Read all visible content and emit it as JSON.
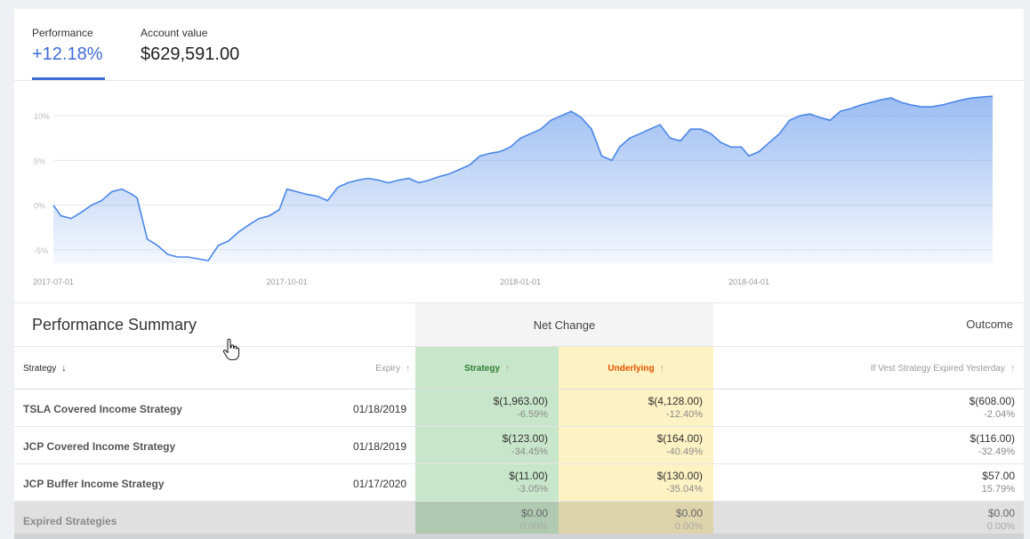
{
  "tabs": {
    "performance": {
      "label": "Performance",
      "value": "+12.18%"
    },
    "account": {
      "label": "Account value",
      "value": "$629,591.00"
    }
  },
  "chart_data": {
    "type": "area",
    "title": "",
    "xlabel": "",
    "ylabel": "",
    "x_ticks": [
      "2017-07-01",
      "2017-10-01",
      "2018-01-01",
      "2018-04-01"
    ],
    "y_ticks": [
      "10%",
      "5%",
      "0%",
      "-5%"
    ],
    "ylim": [
      -6.5,
      13
    ],
    "grid": true,
    "color": "#4a86e8",
    "series": [
      {
        "x": [
          "2017-07-01",
          "2017-07-04",
          "2017-07-08",
          "2017-07-12",
          "2017-07-16",
          "2017-07-20",
          "2017-07-24",
          "2017-07-28",
          "2017-08-01",
          "2017-08-03",
          "2017-08-07",
          "2017-08-11",
          "2017-08-15",
          "2017-08-19",
          "2017-08-23",
          "2017-08-27",
          "2017-08-31",
          "2017-09-04",
          "2017-09-08",
          "2017-09-12",
          "2017-09-16",
          "2017-09-20",
          "2017-09-24",
          "2017-09-28",
          "2017-10-01",
          "2017-10-05",
          "2017-10-09",
          "2017-10-13",
          "2017-10-17",
          "2017-10-21",
          "2017-10-25",
          "2017-10-29",
          "2017-11-02",
          "2017-11-06",
          "2017-11-10",
          "2017-11-14",
          "2017-11-18",
          "2017-11-22",
          "2017-11-26",
          "2017-11-30",
          "2017-12-04",
          "2017-12-08",
          "2017-12-12",
          "2017-12-16",
          "2017-12-20",
          "2017-12-24",
          "2017-12-28",
          "2018-01-01",
          "2018-01-05",
          "2018-01-09",
          "2018-01-13",
          "2018-01-17",
          "2018-01-21",
          "2018-01-25",
          "2018-01-29",
          "2018-02-02",
          "2018-02-06",
          "2018-02-09",
          "2018-02-13",
          "2018-02-17",
          "2018-02-21",
          "2018-02-25",
          "2018-03-01",
          "2018-03-05",
          "2018-03-09",
          "2018-03-13",
          "2018-03-17",
          "2018-03-21",
          "2018-03-25",
          "2018-03-29",
          "2018-04-01",
          "2018-04-05",
          "2018-04-09",
          "2018-04-13",
          "2018-04-17",
          "2018-04-21",
          "2018-04-25",
          "2018-04-29",
          "2018-05-03",
          "2018-05-07",
          "2018-05-11",
          "2018-05-15",
          "2018-05-19",
          "2018-05-23",
          "2018-05-27",
          "2018-05-31",
          "2018-06-04",
          "2018-06-08",
          "2018-06-12",
          "2018-06-16",
          "2018-06-20",
          "2018-06-24",
          "2018-06-28",
          "2018-07-02",
          "2018-07-06"
        ],
        "values": [
          0.0,
          -1.2,
          -1.5,
          -0.8,
          0.0,
          0.5,
          1.5,
          1.8,
          1.2,
          0.8,
          -3.8,
          -4.5,
          -5.5,
          -5.8,
          -5.8,
          -6.0,
          -6.2,
          -4.5,
          -4.0,
          -3.0,
          -2.2,
          -1.5,
          -1.2,
          -0.5,
          1.8,
          1.5,
          1.2,
          1.0,
          0.5,
          2.0,
          2.5,
          2.8,
          3.0,
          2.8,
          2.5,
          2.8,
          3.0,
          2.5,
          2.8,
          3.2,
          3.5,
          4.0,
          4.5,
          5.5,
          5.8,
          6.0,
          6.5,
          7.5,
          8.0,
          8.5,
          9.5,
          10.0,
          10.5,
          9.8,
          8.5,
          5.5,
          5.0,
          6.5,
          7.5,
          8.0,
          8.5,
          9.0,
          7.5,
          7.2,
          8.5,
          8.5,
          8.0,
          7.0,
          6.5,
          6.5,
          5.5,
          6.0,
          7.0,
          8.0,
          9.5,
          10.0,
          10.2,
          9.8,
          9.5,
          10.5,
          10.8,
          11.2,
          11.5,
          11.8,
          12.0,
          11.5,
          11.2,
          11.0,
          11.0,
          11.2,
          11.5,
          11.8,
          12.0,
          12.1,
          12.18
        ]
      }
    ]
  },
  "summary": {
    "title": "Performance Summary",
    "net_change": "Net Change",
    "outcome": "Outcome",
    "columns": {
      "strategy": "Strategy",
      "expiry": "Expiry",
      "s_strategy": "Strategy",
      "underlying": "Underlying",
      "vest": "If Vest Strategy Expired Yesterday"
    },
    "rows": [
      {
        "name": "TSLA Covered Income Strategy",
        "expiry": "01/18/2019",
        "strategy_amt": "$(1,963.00)",
        "strategy_pct": "-6.59%",
        "under_amt": "$(4,128.00)",
        "under_pct": "-12.40%",
        "out_amt": "$(608.00)",
        "out_pct": "-2.04%"
      },
      {
        "name": "JCP Covered Income Strategy",
        "expiry": "01/18/2019",
        "strategy_amt": "$(123.00)",
        "strategy_pct": "-34.45%",
        "under_amt": "$(164.00)",
        "under_pct": "-40.49%",
        "out_amt": "$(116.00)",
        "out_pct": "-32.49%"
      },
      {
        "name": "JCP Buffer Income Strategy",
        "expiry": "01/17/2020",
        "strategy_amt": "$(11.00)",
        "strategy_pct": "-3.05%",
        "under_amt": "$(130.00)",
        "under_pct": "-35.04%",
        "out_amt": "$57.00",
        "out_pct": "15.79%"
      },
      {
        "name": "Expired Strategies",
        "expiry": "",
        "strategy_amt": "$0.00",
        "strategy_pct": "0.00%",
        "under_amt": "$0.00",
        "under_pct": "0.00%",
        "out_amt": "$0.00",
        "out_pct": "0.00%"
      }
    ]
  }
}
